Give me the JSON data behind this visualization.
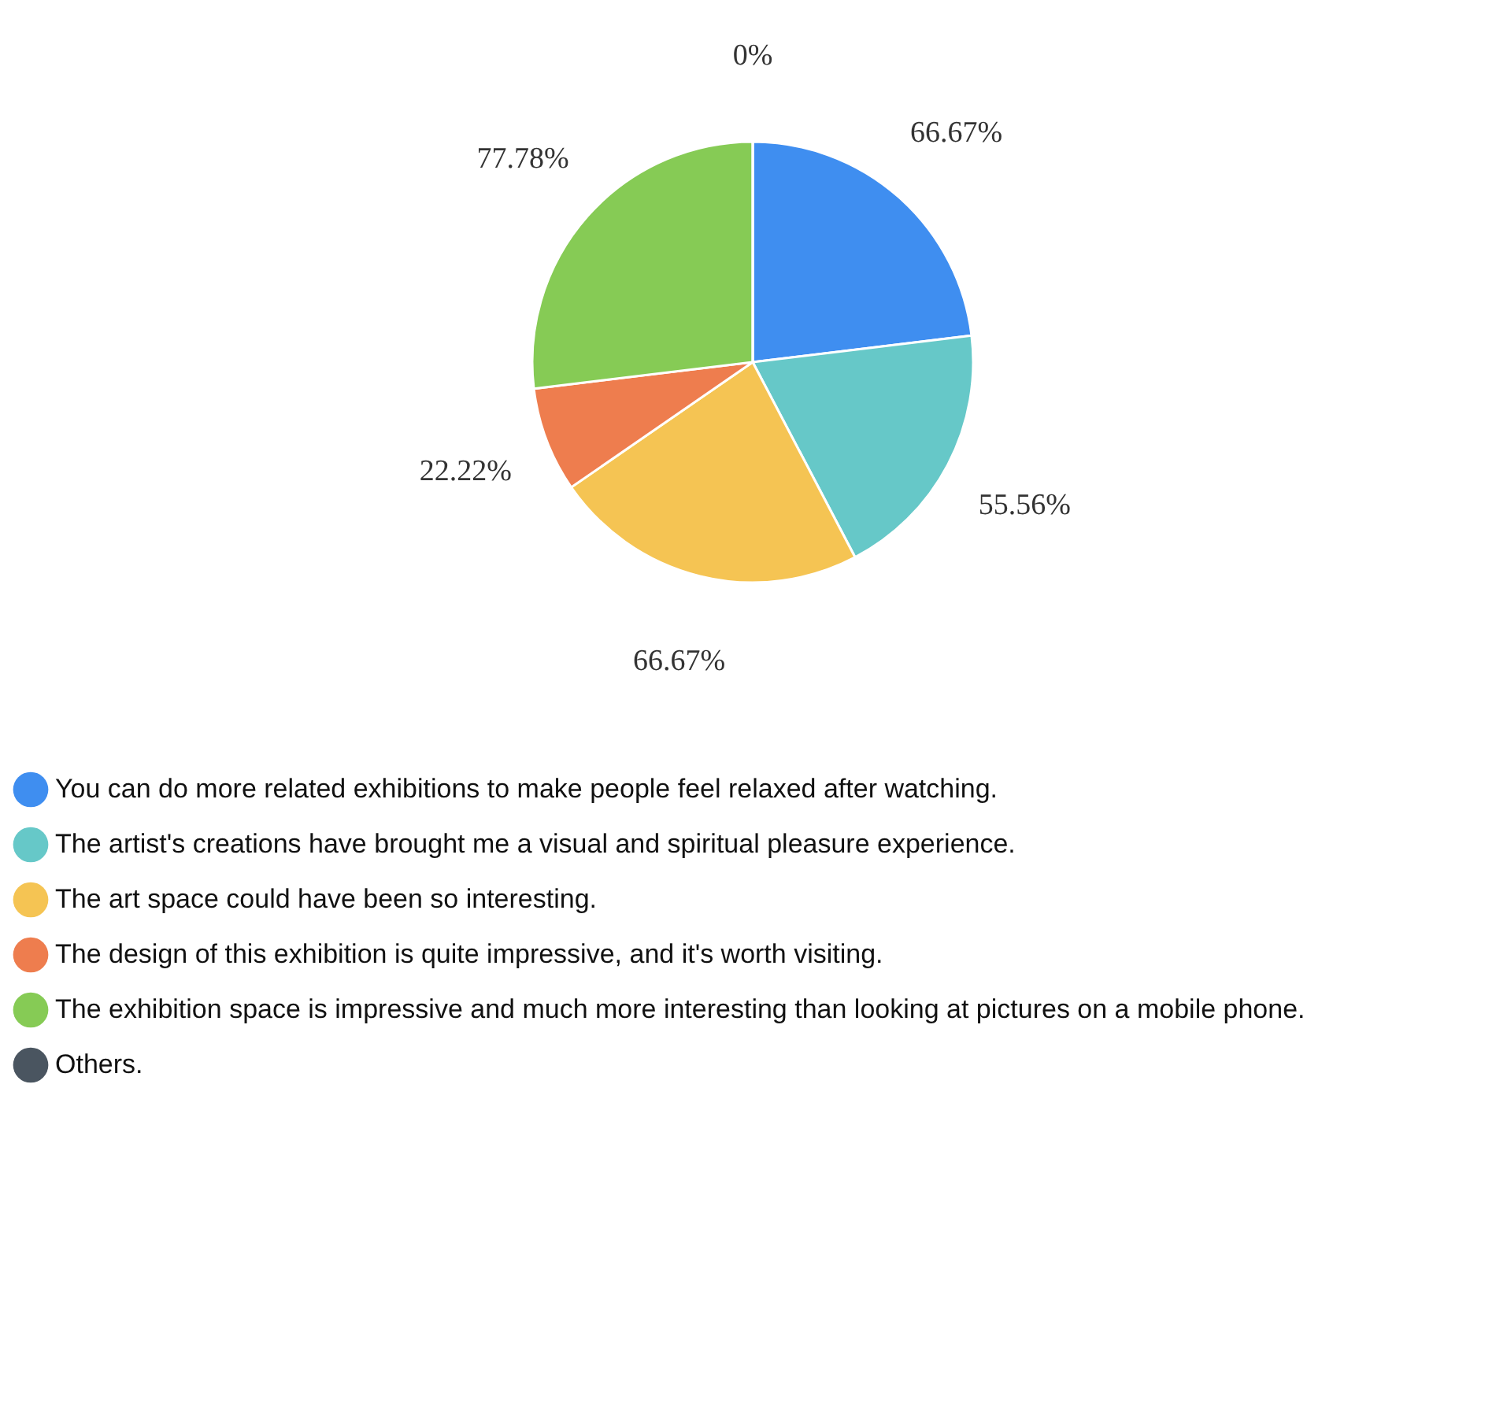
{
  "chart_data": {
    "type": "pie",
    "legend": "bottom",
    "categories": [
      "You can do more related exhibitions to make people feel relaxed after watching.",
      "The artist's creations have brought me a visual and spiritual pleasure experience.",
      "The art space could have been so interesting.",
      "The design of this exhibition is quite impressive, and it's worth visiting.",
      "The exhibition space is impressive and much more interesting than looking at pictures on a mobile phone.",
      "Others."
    ],
    "values": [
      66.67,
      55.56,
      66.67,
      22.22,
      77.78,
      0
    ],
    "value_labels": [
      "66.67%",
      "55.56%",
      "66.67%",
      "22.22%",
      "77.78%",
      "0%"
    ],
    "colors": [
      "#3f8ef0",
      "#66c8c8",
      "#f5c453",
      "#ee7d4e",
      "#86cb55",
      "#4a5560"
    ]
  }
}
